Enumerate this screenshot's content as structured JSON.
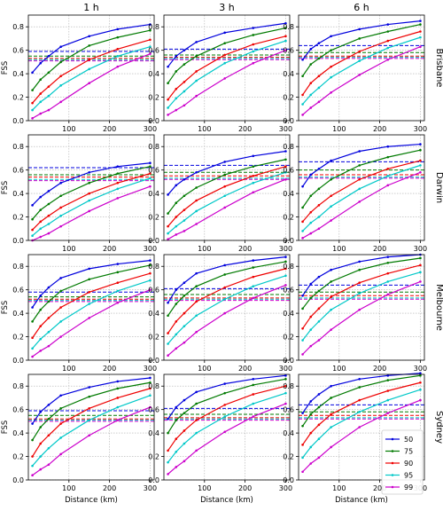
{
  "chart_data": {
    "type": "line",
    "grid": true,
    "xlabel": "Distance (km)",
    "ylabel": "FSS",
    "columns": [
      "1 h",
      "3 h",
      "6 h"
    ],
    "rows": [
      "Brisbane",
      "Darwin",
      "Melbourne",
      "Sydney"
    ],
    "xlim": [
      0,
      310
    ],
    "ylim": [
      0.0,
      0.9
    ],
    "xticks": [
      "100",
      "200",
      "300"
    ],
    "yticks": [
      "0.0",
      "0.2",
      "0.4",
      "0.6",
      "0.8"
    ],
    "x": [
      10,
      30,
      50,
      80,
      150,
      220,
      300
    ],
    "legend": {
      "position": "lower-right",
      "location": "Sydney / 6 h",
      "labels": [
        "50",
        "75",
        "90",
        "95",
        "99"
      ]
    },
    "series_colors": [
      "#0000dd",
      "#007a00",
      "#ee0000",
      "#00c8c8",
      "#cc00cc"
    ],
    "panels": [
      {
        "row": "Brisbane",
        "column": "1 h",
        "baselines": [
          0.59,
          0.55,
          0.53,
          0.52,
          0.51
        ],
        "series": [
          {
            "values": [
              0.41,
              0.49,
              0.55,
              0.63,
              0.72,
              0.78,
              0.82
            ]
          },
          {
            "values": [
              0.26,
              0.35,
              0.41,
              0.5,
              0.64,
              0.71,
              0.77
            ]
          },
          {
            "values": [
              0.15,
              0.23,
              0.29,
              0.38,
              0.52,
              0.61,
              0.69
            ]
          },
          {
            "values": [
              0.09,
              0.16,
              0.21,
              0.3,
              0.44,
              0.55,
              0.63
            ]
          },
          {
            "values": [
              0.02,
              0.06,
              0.09,
              0.16,
              0.32,
              0.46,
              0.57
            ]
          }
        ]
      },
      {
        "row": "Brisbane",
        "column": "3 h",
        "baselines": [
          0.61,
          0.56,
          0.54,
          0.53,
          0.52
        ],
        "series": [
          {
            "values": [
              0.46,
              0.55,
              0.6,
              0.67,
              0.75,
              0.79,
              0.83
            ]
          },
          {
            "values": [
              0.32,
              0.42,
              0.48,
              0.55,
              0.66,
              0.73,
              0.79
            ]
          },
          {
            "values": [
              0.18,
              0.27,
              0.33,
              0.42,
              0.56,
              0.65,
              0.72
            ]
          },
          {
            "values": [
              0.11,
              0.19,
              0.25,
              0.34,
              0.49,
              0.59,
              0.68
            ]
          },
          {
            "values": [
              0.05,
              0.09,
              0.13,
              0.21,
              0.36,
              0.49,
              0.6
            ]
          }
        ]
      },
      {
        "row": "Brisbane",
        "column": "6 h",
        "baselines": [
          0.64,
          0.58,
          0.55,
          0.54,
          0.53
        ],
        "series": [
          {
            "values": [
              0.52,
              0.61,
              0.66,
              0.72,
              0.78,
              0.82,
              0.85
            ]
          },
          {
            "values": [
              0.38,
              0.48,
              0.53,
              0.6,
              0.7,
              0.76,
              0.82
            ]
          },
          {
            "values": [
              0.22,
              0.32,
              0.38,
              0.46,
              0.59,
              0.68,
              0.76
            ]
          },
          {
            "values": [
              0.14,
              0.22,
              0.28,
              0.37,
              0.51,
              0.62,
              0.71
            ]
          },
          {
            "values": [
              0.05,
              0.11,
              0.16,
              0.24,
              0.39,
              0.52,
              0.63
            ]
          }
        ]
      },
      {
        "row": "Darwin",
        "column": "1 h",
        "baselines": [
          0.62,
          0.56,
          0.54,
          0.52,
          0.51
        ],
        "series": [
          {
            "values": [
              0.3,
              0.37,
              0.42,
              0.49,
              0.58,
              0.63,
              0.66
            ]
          },
          {
            "values": [
              0.18,
              0.26,
              0.31,
              0.38,
              0.49,
              0.57,
              0.63
            ]
          },
          {
            "values": [
              0.09,
              0.16,
              0.21,
              0.28,
              0.4,
              0.49,
              0.57
            ]
          },
          {
            "values": [
              0.04,
              0.1,
              0.14,
              0.21,
              0.34,
              0.44,
              0.53
            ]
          },
          {
            "values": [
              0.0,
              0.03,
              0.06,
              0.12,
              0.25,
              0.36,
              0.46
            ]
          }
        ]
      },
      {
        "row": "Darwin",
        "column": "3 h",
        "baselines": [
          0.64,
          0.58,
          0.55,
          0.53,
          0.52
        ],
        "series": [
          {
            "values": [
              0.39,
              0.47,
              0.52,
              0.58,
              0.67,
              0.72,
              0.76
            ]
          },
          {
            "values": [
              0.23,
              0.32,
              0.38,
              0.45,
              0.56,
              0.63,
              0.69
            ]
          },
          {
            "values": [
              0.12,
              0.2,
              0.26,
              0.34,
              0.46,
              0.55,
              0.63
            ]
          },
          {
            "values": [
              0.06,
              0.12,
              0.17,
              0.25,
              0.38,
              0.49,
              0.58
            ]
          },
          {
            "values": [
              0.01,
              0.05,
              0.08,
              0.14,
              0.28,
              0.41,
              0.52
            ]
          }
        ]
      },
      {
        "row": "Darwin",
        "column": "6 h",
        "baselines": [
          0.67,
          0.6,
          0.56,
          0.54,
          0.53
        ],
        "series": [
          {
            "values": [
              0.46,
              0.56,
              0.61,
              0.68,
              0.76,
              0.8,
              0.82
            ]
          },
          {
            "values": [
              0.28,
              0.38,
              0.44,
              0.52,
              0.64,
              0.71,
              0.77
            ]
          },
          {
            "values": [
              0.16,
              0.24,
              0.3,
              0.38,
              0.52,
              0.61,
              0.68
            ]
          },
          {
            "values": [
              0.08,
              0.15,
              0.2,
              0.29,
              0.44,
              0.55,
              0.64
            ]
          },
          {
            "values": [
              0.02,
              0.06,
              0.1,
              0.17,
              0.33,
              0.47,
              0.58
            ]
          }
        ]
      },
      {
        "row": "Melbourne",
        "column": "1 h",
        "baselines": [
          0.58,
          0.54,
          0.52,
          0.51,
          0.5
        ],
        "series": [
          {
            "values": [
              0.45,
              0.55,
              0.62,
              0.7,
              0.78,
              0.82,
              0.85
            ]
          },
          {
            "values": [
              0.33,
              0.43,
              0.5,
              0.59,
              0.69,
              0.75,
              0.81
            ]
          },
          {
            "values": [
              0.19,
              0.29,
              0.36,
              0.45,
              0.58,
              0.66,
              0.74
            ]
          },
          {
            "values": [
              0.1,
              0.18,
              0.24,
              0.33,
              0.48,
              0.59,
              0.68
            ]
          },
          {
            "values": [
              0.03,
              0.08,
              0.12,
              0.2,
              0.36,
              0.49,
              0.6
            ]
          }
        ]
      },
      {
        "row": "Melbourne",
        "column": "3 h",
        "baselines": [
          0.61,
          0.56,
          0.53,
          0.52,
          0.51
        ],
        "series": [
          {
            "values": [
              0.49,
              0.6,
              0.66,
              0.74,
              0.81,
              0.85,
              0.88
            ]
          },
          {
            "values": [
              0.38,
              0.48,
              0.55,
              0.63,
              0.73,
              0.79,
              0.84
            ]
          },
          {
            "values": [
              0.23,
              0.33,
              0.4,
              0.5,
              0.62,
              0.71,
              0.78
            ]
          },
          {
            "values": [
              0.14,
              0.22,
              0.29,
              0.38,
              0.52,
              0.63,
              0.72
            ]
          },
          {
            "values": [
              0.04,
              0.1,
              0.15,
              0.24,
              0.4,
              0.53,
              0.64
            ]
          }
        ]
      },
      {
        "row": "Melbourne",
        "column": "6 h",
        "baselines": [
          0.64,
          0.58,
          0.55,
          0.53,
          0.52
        ],
        "series": [
          {
            "values": [
              0.55,
              0.65,
              0.71,
              0.77,
              0.84,
              0.88,
              0.9
            ]
          },
          {
            "values": [
              0.44,
              0.53,
              0.59,
              0.67,
              0.77,
              0.83,
              0.87
            ]
          },
          {
            "values": [
              0.27,
              0.37,
              0.44,
              0.54,
              0.66,
              0.74,
              0.81
            ]
          },
          {
            "values": [
              0.17,
              0.26,
              0.33,
              0.43,
              0.57,
              0.67,
              0.75
            ]
          },
          {
            "values": [
              0.05,
              0.12,
              0.17,
              0.26,
              0.43,
              0.56,
              0.67
            ]
          }
        ]
      },
      {
        "row": "Sydney",
        "column": "1 h",
        "baselines": [
          0.59,
          0.55,
          0.52,
          0.51,
          0.5
        ],
        "series": [
          {
            "values": [
              0.48,
              0.58,
              0.64,
              0.72,
              0.79,
              0.84,
              0.87
            ]
          },
          {
            "values": [
              0.34,
              0.45,
              0.52,
              0.61,
              0.71,
              0.78,
              0.83
            ]
          },
          {
            "values": [
              0.2,
              0.31,
              0.38,
              0.48,
              0.61,
              0.7,
              0.78
            ]
          },
          {
            "values": [
              0.12,
              0.2,
              0.27,
              0.36,
              0.51,
              0.62,
              0.72
            ]
          },
          {
            "values": [
              0.04,
              0.09,
              0.13,
              0.22,
              0.38,
              0.51,
              0.62
            ]
          }
        ]
      },
      {
        "row": "Sydney",
        "column": "3 h",
        "baselines": [
          0.61,
          0.56,
          0.53,
          0.52,
          0.51
        ],
        "series": [
          {
            "values": [
              0.52,
              0.62,
              0.68,
              0.75,
              0.82,
              0.86,
              0.89
            ]
          },
          {
            "values": [
              0.4,
              0.51,
              0.57,
              0.65,
              0.74,
              0.81,
              0.86
            ]
          },
          {
            "values": [
              0.25,
              0.35,
              0.42,
              0.51,
              0.64,
              0.73,
              0.8
            ]
          },
          {
            "values": [
              0.15,
              0.24,
              0.31,
              0.4,
              0.54,
              0.65,
              0.74
            ]
          },
          {
            "values": [
              0.05,
              0.11,
              0.16,
              0.25,
              0.41,
              0.54,
              0.65
            ]
          }
        ]
      },
      {
        "row": "Sydney",
        "column": "6 h",
        "baselines": [
          0.64,
          0.58,
          0.55,
          0.53,
          0.52
        ],
        "series": [
          {
            "values": [
              0.57,
              0.67,
              0.73,
              0.8,
              0.86,
              0.89,
              0.91
            ]
          },
          {
            "values": [
              0.46,
              0.56,
              0.62,
              0.7,
              0.79,
              0.85,
              0.89
            ]
          },
          {
            "values": [
              0.3,
              0.4,
              0.47,
              0.56,
              0.68,
              0.76,
              0.83
            ]
          },
          {
            "values": [
              0.19,
              0.28,
              0.35,
              0.45,
              0.58,
              0.68,
              0.77
            ]
          },
          {
            "values": [
              0.07,
              0.14,
              0.19,
              0.28,
              0.45,
              0.57,
              0.68
            ]
          }
        ]
      }
    ]
  }
}
